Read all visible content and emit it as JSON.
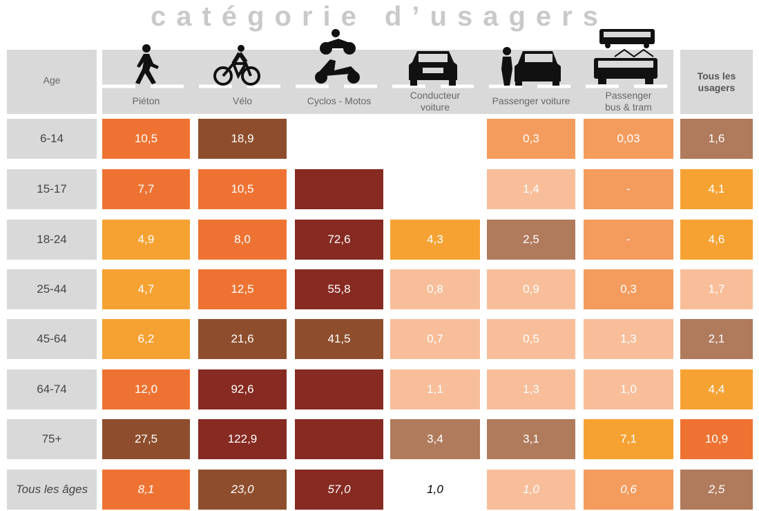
{
  "title": "catégorie d’usagers",
  "header": {
    "age": "Age",
    "columns": [
      "Piéton",
      "Vélo",
      "Cyclos - Motos",
      "Conducteur\nvoiture",
      "Passenger voiture",
      "Passenger\nbus & tram"
    ],
    "total": "Tous les\nusagers"
  },
  "table": {
    "rows": [
      {
        "age": "6-14",
        "cells": [
          {
            "value": "10,5",
            "color": "#ee7333"
          },
          {
            "value": "18,9",
            "color": "#8e4e2d"
          },
          null,
          null,
          {
            "value": "0,3",
            "color": "#f39c5e"
          },
          {
            "value": "0,03",
            "color": "#f39c5e"
          },
          {
            "value": "1,6",
            "color": "#b07a5c"
          }
        ]
      },
      {
        "age": "15-17",
        "cells": [
          {
            "value": "7,7",
            "color": "#ee7333"
          },
          {
            "value": "10,5",
            "color": "#ee7333"
          },
          {
            "color": "#862a22"
          },
          null,
          {
            "value": "1,4",
            "color": "#f8be9a"
          },
          {
            "value": "-",
            "color": "#f39c5e"
          },
          {
            "value": "4,1",
            "color": "#f5a233"
          }
        ]
      },
      {
        "age": "18-24",
        "cells": [
          {
            "value": "4,9",
            "color": "#f5a233"
          },
          {
            "value": "8,0",
            "color": "#ee7333"
          },
          {
            "value": "72,6",
            "color": "#862a22"
          },
          {
            "value": "4,3",
            "color": "#f5a233"
          },
          {
            "value": "2,5",
            "color": "#b07a5c"
          },
          {
            "value": "-",
            "color": "#f39c5e"
          },
          {
            "value": "4,6",
            "color": "#f5a233"
          }
        ]
      },
      {
        "age": "25-44",
        "cells": [
          {
            "value": "4,7",
            "color": "#f5a233"
          },
          {
            "value": "12,5",
            "color": "#ee7333"
          },
          {
            "value": "55,8",
            "color": "#862a22"
          },
          {
            "value": "0,8",
            "color": "#f8be9a"
          },
          {
            "value": "0,9",
            "color": "#f8be9a"
          },
          {
            "value": "0,3",
            "color": "#f39c5e"
          },
          {
            "value": "1,7",
            "color": "#f8be9a"
          }
        ]
      },
      {
        "age": "45-64",
        "cells": [
          {
            "value": "6,2",
            "color": "#f5a233"
          },
          {
            "value": "21,6",
            "color": "#8e4e2d"
          },
          {
            "value": "41,5",
            "color": "#8e4e2d"
          },
          {
            "value": "0,7",
            "color": "#f8be9a"
          },
          {
            "value": "0,5",
            "color": "#f8be9a"
          },
          {
            "value": "1,3",
            "color": "#f8be9a"
          },
          {
            "value": "2,1",
            "color": "#b07a5c"
          }
        ]
      },
      {
        "age": "64-74",
        "cells": [
          {
            "value": "12,0",
            "color": "#ee7333"
          },
          {
            "value": "92,6",
            "color": "#862a22"
          },
          {
            "color": "#862a22"
          },
          {
            "value": "1,1",
            "color": "#f8be9a"
          },
          {
            "value": "1,3",
            "color": "#f8be9a"
          },
          {
            "value": "1,0",
            "color": "#f8be9a"
          },
          {
            "value": "4,4",
            "color": "#f5a233"
          }
        ]
      },
      {
        "age": "75+",
        "cells": [
          {
            "value": "27,5",
            "color": "#8e4e2d"
          },
          {
            "value": "122,9",
            "color": "#862a22"
          },
          {
            "color": "#862a22"
          },
          {
            "value": "3,4",
            "color": "#b07a5c"
          },
          {
            "value": "3,1",
            "color": "#b07a5c"
          },
          {
            "value": "7,1",
            "color": "#f5a233"
          },
          {
            "value": "10,9",
            "color": "#ee7333"
          }
        ]
      },
      {
        "age": "Tous les âges",
        "italic": true,
        "cells": [
          {
            "value": "8,1",
            "color": "#ee7333"
          },
          {
            "value": "23,0",
            "color": "#8e4e2d"
          },
          {
            "value": "57,0",
            "color": "#862a22"
          },
          {
            "value": "1,0",
            "color": "#ffffff",
            "text_color": "#000000"
          },
          {
            "value": "1,0",
            "color": "#f8be9a"
          },
          {
            "value": "0,6",
            "color": "#f39c5e"
          },
          {
            "value": "2,5",
            "color": "#b07a5c"
          }
        ]
      }
    ]
  }
}
